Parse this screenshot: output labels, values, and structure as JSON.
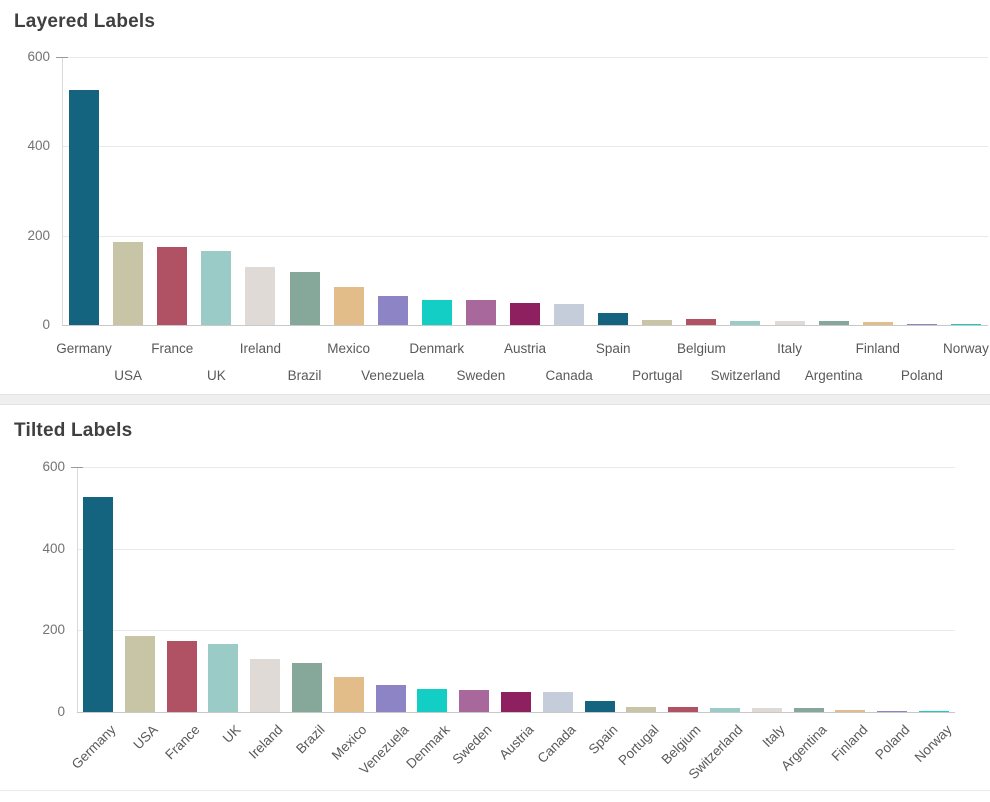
{
  "palette": [
    "#14647f",
    "#c8c5a6",
    "#b05263",
    "#9bcbc6",
    "#e0dad6",
    "#85a89a",
    "#e2bd8a",
    "#8c84c4",
    "#12cec5",
    "#a8689c",
    "#8e2060",
    "#c6cdda"
  ],
  "colors": {
    "title_text": "#404040",
    "axis_tick_text": "#737373",
    "category_label_text": "#595959",
    "gridline": "#e9e9e9",
    "baseline": "#c9c9c9",
    "divider_band": "#efefef",
    "background": "#ffffff"
  },
  "chart_data": [
    {
      "type": "bar",
      "title": "Layered Labels",
      "categories": [
        "Germany",
        "USA",
        "France",
        "UK",
        "Ireland",
        "Brazil",
        "Mexico",
        "Venezuela",
        "Denmark",
        "Sweden",
        "Austria",
        "Canada",
        "Spain",
        "Portugal",
        "Belgium",
        "Switzerland",
        "Italy",
        "Argentina",
        "Finland",
        "Poland",
        "Norway"
      ],
      "values": [
        527,
        185,
        174,
        166,
        130,
        119,
        85,
        65,
        57,
        55,
        50,
        48,
        27,
        12,
        13,
        10,
        9,
        9,
        6,
        3,
        1
      ],
      "xlabel": "",
      "ylabel": "",
      "ylim": [
        0,
        600
      ],
      "yticks": [
        0,
        200,
        400,
        600
      ],
      "grid": true,
      "legend": false,
      "x_label_layout": "layered"
    },
    {
      "type": "bar",
      "title": "Tilted Labels",
      "categories": [
        "Germany",
        "USA",
        "France",
        "UK",
        "Ireland",
        "Brazil",
        "Mexico",
        "Venezuela",
        "Denmark",
        "Sweden",
        "Austria",
        "Canada",
        "Spain",
        "Portugal",
        "Belgium",
        "Switzerland",
        "Italy",
        "Argentina",
        "Finland",
        "Poland",
        "Norway"
      ],
      "values": [
        527,
        185,
        174,
        166,
        130,
        119,
        85,
        65,
        57,
        55,
        50,
        48,
        27,
        12,
        13,
        10,
        9,
        9,
        6,
        3,
        1
      ],
      "xlabel": "",
      "ylabel": "",
      "ylim": [
        0,
        600
      ],
      "yticks": [
        0,
        200,
        400,
        600
      ],
      "grid": true,
      "legend": false,
      "x_label_layout": "tilted"
    }
  ]
}
